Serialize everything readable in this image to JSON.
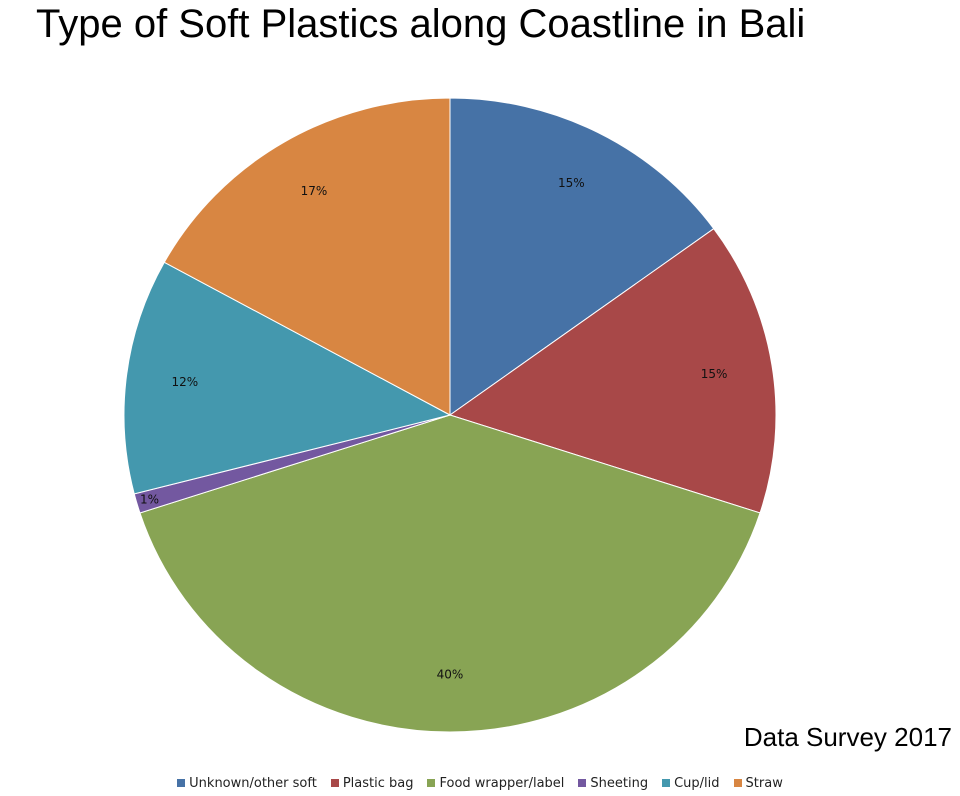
{
  "chart_data": {
    "type": "pie",
    "title": "Type of Soft Plastics along Coastline in Bali",
    "source_note": "Data Survey 2017",
    "legend_position": "bottom",
    "categories": [
      "Unknown/other soft",
      "Plastic bag",
      "Food wrapper/label",
      "Sheeting",
      "Cup/lid",
      "Straw"
    ],
    "values": [
      15,
      15,
      40,
      1,
      12,
      17
    ],
    "data_labels": [
      "15%",
      "15%",
      "40%",
      "1%",
      "12%",
      "17%"
    ],
    "colors": [
      "#4672A6",
      "#A84848",
      "#88A454",
      "#7358A0",
      "#4498AE",
      "#D88642"
    ]
  }
}
